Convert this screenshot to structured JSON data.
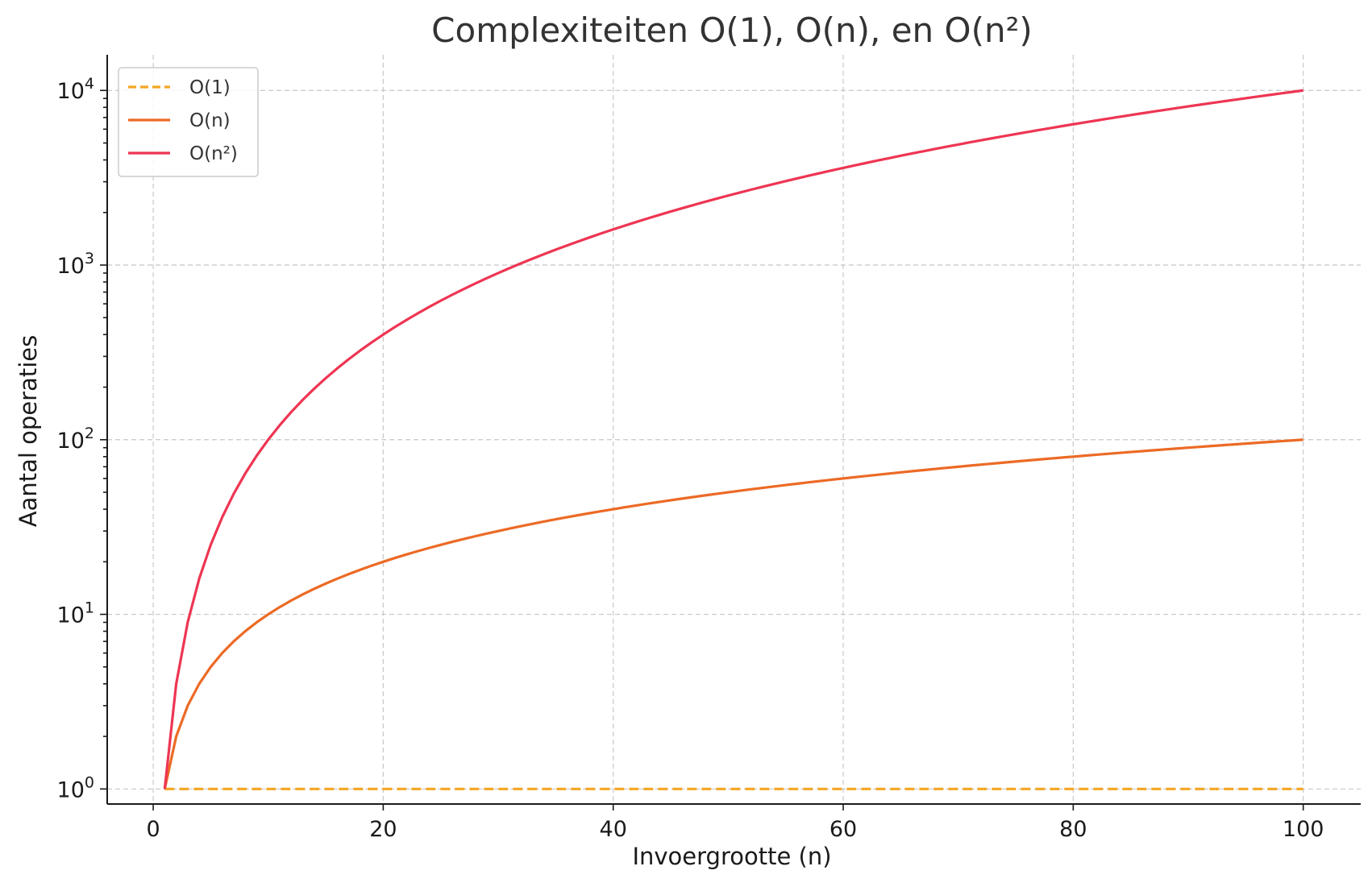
{
  "chart_data": {
    "type": "line",
    "title": "Complexiteiten O(1), O(n), en O(n²)",
    "xlabel": "Invoergrootte (n)",
    "ylabel": "Aantal operaties",
    "x_range": [
      1,
      100
    ],
    "xlim": [
      -4,
      105
    ],
    "ylim": [
      0.82,
      16000
    ],
    "yscale": "log",
    "grid": true,
    "legend_position": "top-left",
    "x_ticks": [
      0,
      20,
      40,
      60,
      80,
      100
    ],
    "x_tick_labels": [
      "0",
      "20",
      "40",
      "60",
      "80",
      "100"
    ],
    "y_ticks": [
      1,
      10,
      100,
      1000,
      10000
    ],
    "y_tick_labels": [
      {
        "base": "10",
        "exp": "0"
      },
      {
        "base": "10",
        "exp": "1"
      },
      {
        "base": "10",
        "exp": "2"
      },
      {
        "base": "10",
        "exp": "3"
      },
      {
        "base": "10",
        "exp": "4"
      }
    ],
    "series": [
      {
        "name": "O(1)",
        "formula": "1",
        "color": "#f5a623",
        "style": "dashed"
      },
      {
        "name": "O(n)",
        "formula": "n",
        "color": "#ec6a25",
        "style": "solid"
      },
      {
        "name": "O(n²)",
        "formula": "n^2",
        "color": "#ee3553",
        "style": "solid"
      }
    ]
  }
}
